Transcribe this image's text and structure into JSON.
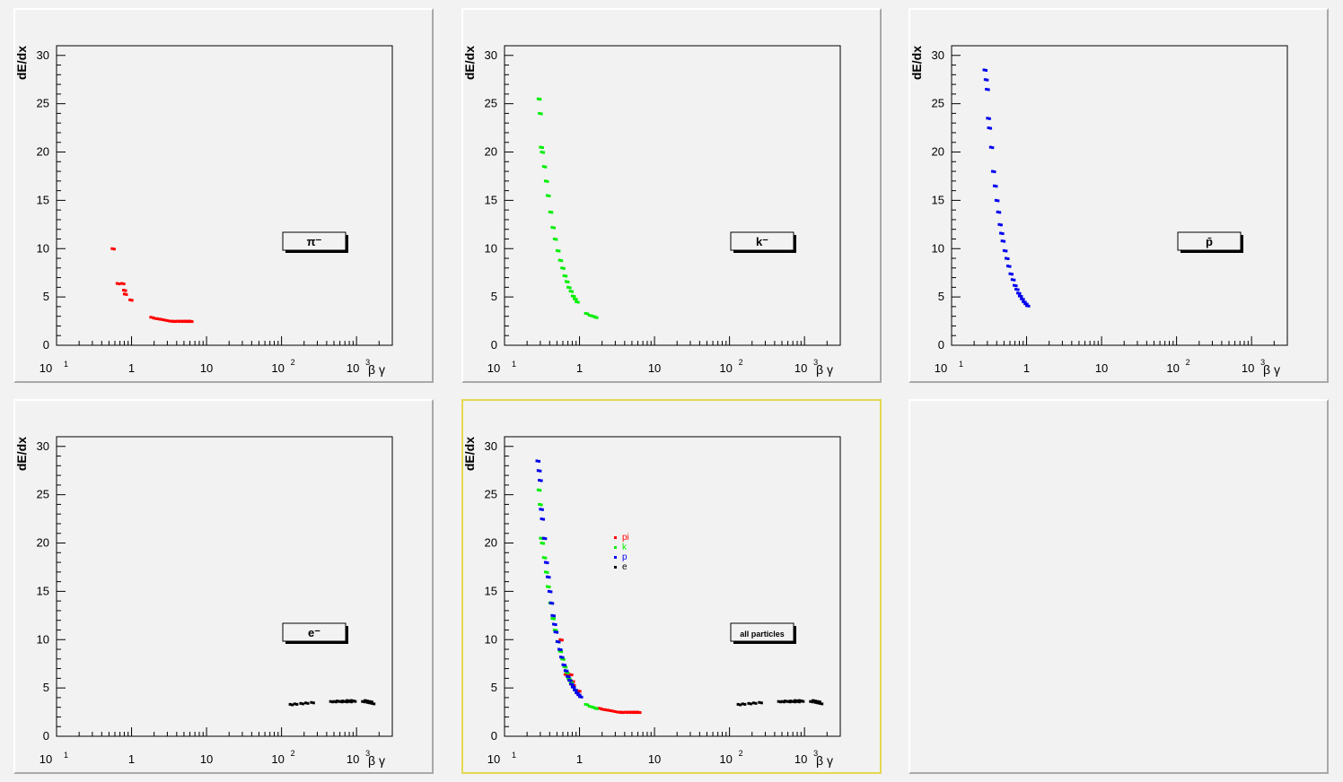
{
  "chart_data": [
    {
      "type": "scatter",
      "xscale": "log",
      "xlim": [
        0.1,
        3000
      ],
      "ylim": [
        0,
        31
      ],
      "xlabel": "β γ",
      "ylabel": "dE/dx",
      "yticks": [
        0,
        5,
        10,
        15,
        20,
        25,
        30
      ],
      "legend_box": "π⁻",
      "series": [
        {
          "color": "#ff0000",
          "x": [
            0.55,
            0.64,
            0.74,
            0.78,
            0.8,
            0.95,
            1.8,
            2.0,
            2.2,
            2.4,
            2.6,
            2.8,
            3.0,
            3.3,
            3.6,
            4.0,
            4.4,
            4.8,
            5.2,
            5.6,
            6.0
          ],
          "y": [
            10.0,
            6.4,
            6.4,
            5.7,
            5.3,
            4.7,
            2.9,
            2.8,
            2.75,
            2.7,
            2.65,
            2.6,
            2.55,
            2.5,
            2.5,
            2.5,
            2.5,
            2.5,
            2.5,
            2.5,
            2.5
          ]
        }
      ]
    },
    {
      "type": "scatter",
      "xscale": "log",
      "xlim": [
        0.1,
        3000
      ],
      "ylim": [
        0,
        31
      ],
      "xlabel": "β γ",
      "ylabel": "dE/dx",
      "yticks": [
        0,
        5,
        10,
        15,
        20,
        25,
        30
      ],
      "legend_box": "k⁻",
      "series": [
        {
          "color": "#00ee00",
          "x": [
            0.28,
            0.29,
            0.3,
            0.31,
            0.33,
            0.35,
            0.37,
            0.4,
            0.43,
            0.46,
            0.5,
            0.54,
            0.58,
            0.62,
            0.66,
            0.7,
            0.75,
            0.8,
            0.85,
            0.9,
            1.2,
            1.35,
            1.5,
            1.6
          ],
          "y": [
            25.5,
            24.0,
            20.5,
            20.0,
            18.5,
            17.0,
            15.5,
            13.8,
            12.2,
            11.0,
            9.8,
            8.8,
            8.0,
            7.2,
            6.6,
            6.0,
            5.6,
            5.1,
            4.8,
            4.5,
            3.3,
            3.1,
            3.0,
            2.9
          ]
        }
      ]
    },
    {
      "type": "scatter",
      "xscale": "log",
      "xlim": [
        0.1,
        3000
      ],
      "ylim": [
        0,
        31
      ],
      "xlabel": "β γ",
      "ylabel": "dE/dx",
      "yticks": [
        0,
        5,
        10,
        15,
        20,
        25,
        30
      ],
      "legend_box": "p̄",
      "series": [
        {
          "color": "#0000ee",
          "x": [
            0.27,
            0.28,
            0.29,
            0.3,
            0.31,
            0.33,
            0.35,
            0.37,
            0.39,
            0.41,
            0.43,
            0.45,
            0.47,
            0.5,
            0.53,
            0.56,
            0.6,
            0.64,
            0.68,
            0.72,
            0.76,
            0.8,
            0.85,
            0.9,
            0.95,
            1.0
          ],
          "y": [
            28.5,
            27.5,
            26.5,
            23.5,
            22.5,
            20.5,
            18.0,
            16.5,
            15.0,
            13.8,
            12.5,
            11.6,
            10.8,
            9.8,
            9.0,
            8.2,
            7.4,
            6.8,
            6.2,
            5.8,
            5.4,
            5.1,
            4.8,
            4.5,
            4.3,
            4.1
          ]
        }
      ]
    },
    {
      "type": "scatter",
      "xscale": "log",
      "xlim": [
        0.1,
        3000
      ],
      "ylim": [
        0,
        31
      ],
      "xlabel": "β γ",
      "ylabel": "dE/dx",
      "yticks": [
        0,
        5,
        10,
        15,
        20,
        25,
        30
      ],
      "legend_box": "e⁻",
      "series": [
        {
          "color": "#000000",
          "x": [
            130,
            150,
            180,
            210,
            250,
            450,
            500,
            550,
            600,
            650,
            700,
            750,
            800,
            850,
            900,
            1200,
            1300,
            1400,
            1500,
            1600
          ],
          "y": [
            3.3,
            3.35,
            3.4,
            3.45,
            3.5,
            3.6,
            3.6,
            3.65,
            3.6,
            3.65,
            3.6,
            3.7,
            3.6,
            3.7,
            3.65,
            3.6,
            3.7,
            3.5,
            3.6,
            3.4
          ]
        }
      ]
    },
    {
      "type": "scatter",
      "xscale": "log",
      "xlim": [
        0.1,
        3000
      ],
      "ylim": [
        0,
        31
      ],
      "xlabel": "β γ",
      "ylabel": "dE/dx",
      "yticks": [
        0,
        5,
        10,
        15,
        20,
        25,
        30
      ],
      "legend_box": "all particles",
      "legend": [
        "pi",
        "k",
        "p",
        "e"
      ],
      "series": [
        {
          "name": "pi",
          "color": "#ff0000",
          "x": [
            0.55,
            0.64,
            0.74,
            0.78,
            0.8,
            0.95,
            1.8,
            2.0,
            2.2,
            2.4,
            2.6,
            2.8,
            3.0,
            3.3,
            3.6,
            4.0,
            4.4,
            4.8,
            5.2,
            5.6,
            6.0
          ],
          "y": [
            10.0,
            6.4,
            6.4,
            5.7,
            5.3,
            4.7,
            2.9,
            2.8,
            2.75,
            2.7,
            2.65,
            2.6,
            2.55,
            2.5,
            2.5,
            2.5,
            2.5,
            2.5,
            2.5,
            2.5,
            2.5
          ]
        },
        {
          "name": "k",
          "color": "#00ee00",
          "x": [
            0.28,
            0.29,
            0.3,
            0.31,
            0.33,
            0.35,
            0.37,
            0.4,
            0.43,
            0.46,
            0.5,
            0.54,
            0.58,
            0.62,
            0.66,
            0.7,
            0.75,
            0.8,
            0.85,
            0.9,
            1.2,
            1.35,
            1.5,
            1.6
          ],
          "y": [
            25.5,
            24.0,
            20.5,
            20.0,
            18.5,
            17.0,
            15.5,
            13.8,
            12.2,
            11.0,
            9.8,
            8.8,
            8.0,
            7.2,
            6.6,
            6.0,
            5.6,
            5.1,
            4.8,
            4.5,
            3.3,
            3.1,
            3.0,
            2.9
          ]
        },
        {
          "name": "p",
          "color": "#0000ee",
          "x": [
            0.27,
            0.28,
            0.29,
            0.3,
            0.31,
            0.33,
            0.35,
            0.37,
            0.39,
            0.41,
            0.43,
            0.45,
            0.47,
            0.5,
            0.53,
            0.56,
            0.6,
            0.64,
            0.68,
            0.72,
            0.76,
            0.8,
            0.85,
            0.9,
            0.95,
            1.0
          ],
          "y": [
            28.5,
            27.5,
            26.5,
            23.5,
            22.5,
            20.5,
            18.0,
            16.5,
            15.0,
            13.8,
            12.5,
            11.6,
            10.8,
            9.8,
            9.0,
            8.2,
            7.4,
            6.8,
            6.2,
            5.8,
            5.4,
            5.1,
            4.8,
            4.5,
            4.3,
            4.1
          ]
        },
        {
          "name": "e",
          "color": "#000000",
          "x": [
            130,
            150,
            180,
            210,
            250,
            450,
            500,
            550,
            600,
            650,
            700,
            750,
            800,
            850,
            900,
            1200,
            1300,
            1400,
            1500,
            1600
          ],
          "y": [
            3.3,
            3.35,
            3.4,
            3.45,
            3.5,
            3.6,
            3.6,
            3.65,
            3.6,
            3.65,
            3.6,
            3.7,
            3.6,
            3.7,
            3.65,
            3.6,
            3.7,
            3.5,
            3.6,
            3.4
          ]
        }
      ]
    }
  ]
}
